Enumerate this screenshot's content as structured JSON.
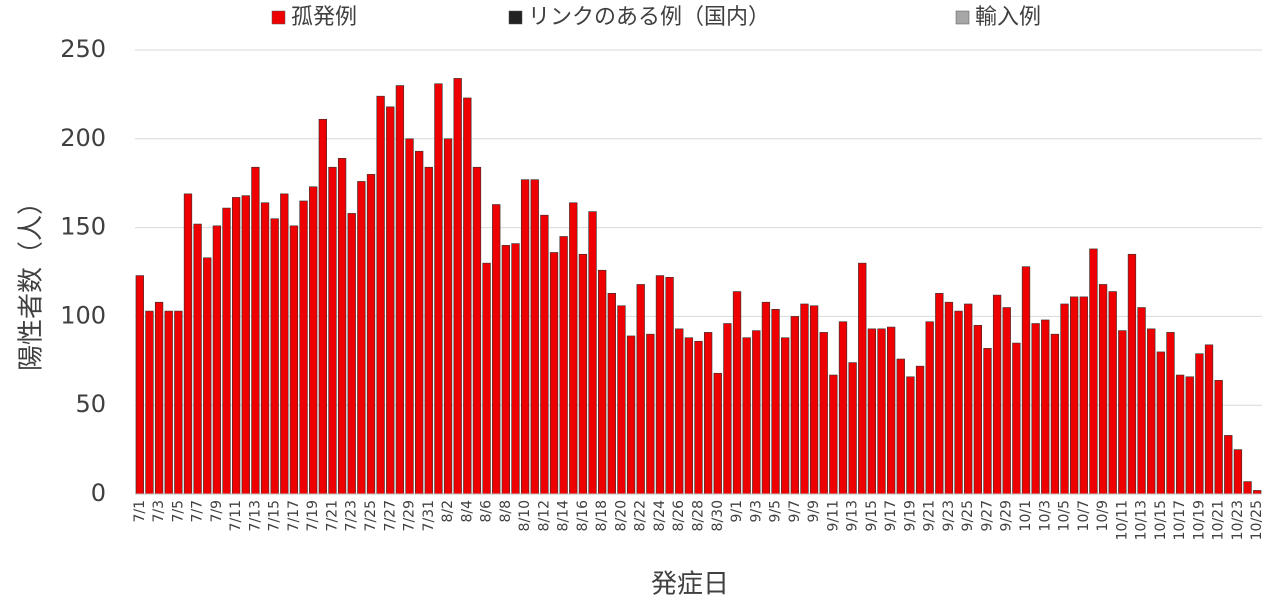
{
  "chart_data": {
    "type": "bar",
    "x_label": "発症日",
    "y_label": "陽性者数（人）",
    "categories": [
      "7/1",
      null,
      "7/3",
      null,
      "7/5",
      null,
      "7/7",
      null,
      "7/9",
      null,
      "7/11",
      null,
      "7/13",
      null,
      "7/15",
      null,
      "7/17",
      null,
      "7/19",
      null,
      "7/21",
      null,
      "7/23",
      null,
      "7/25",
      null,
      "7/27",
      null,
      "7/29",
      null,
      "7/31",
      null,
      "8/2",
      null,
      "8/4",
      null,
      "8/6",
      null,
      "8/8",
      null,
      "8/10",
      null,
      "8/12",
      null,
      "8/14",
      null,
      "8/16",
      null,
      "8/18",
      null,
      "8/20",
      null,
      "8/22",
      null,
      "8/24",
      null,
      "8/26",
      null,
      "8/28",
      null,
      "8/30",
      null,
      "9/1",
      null,
      "9/3",
      null,
      "9/5",
      null,
      "9/7",
      null,
      "9/9",
      null,
      "9/11",
      null,
      "9/13",
      null,
      "9/15",
      null,
      "9/17",
      null,
      "9/19",
      null,
      "9/21",
      null,
      "9/23",
      null,
      "9/25",
      null,
      "9/27",
      null,
      "9/29",
      null,
      "10/1",
      null,
      "10/3",
      null,
      "10/5",
      null,
      "10/7",
      null,
      "10/9",
      null,
      "10/11",
      null,
      "10/13",
      null,
      "10/15",
      null,
      "10/17",
      null,
      "10/19",
      null,
      "10/21",
      null,
      "10/23",
      null,
      "10/25"
    ],
    "series": [
      {
        "name": "孤発例",
        "color": "#ee0000",
        "values": [
          123,
          103,
          108,
          103,
          103,
          169,
          152,
          133,
          151,
          161,
          167,
          168,
          184,
          164,
          155,
          169,
          151,
          165,
          173,
          211,
          184,
          189,
          158,
          176,
          180,
          224,
          218,
          230,
          200,
          193,
          184,
          231,
          200,
          234,
          223,
          184,
          130,
          163,
          140,
          141,
          177,
          177,
          157,
          136,
          145,
          164,
          135,
          159,
          126,
          113,
          106,
          89,
          118,
          90,
          123,
          122,
          93,
          88,
          86,
          91,
          68,
          96,
          114,
          88,
          92,
          108,
          104,
          88,
          100,
          107,
          106,
          91,
          67,
          97,
          74,
          130,
          93,
          93,
          94,
          76,
          66,
          72,
          97,
          113,
          108,
          103,
          107,
          95,
          82,
          112,
          105,
          85,
          128,
          96,
          98,
          90,
          107,
          111,
          111,
          138,
          118,
          114,
          92,
          135,
          105,
          93,
          80,
          91,
          67,
          66,
          79,
          84,
          64,
          33,
          25,
          7,
          2
        ]
      },
      {
        "name": "リンクのある例（国内）",
        "color": "#222222",
        "values": [
          0,
          0,
          0,
          0,
          0,
          0,
          0,
          0,
          0,
          0,
          0,
          0,
          0,
          0,
          0,
          0,
          0,
          0,
          0,
          0,
          0,
          0,
          0,
          0,
          0,
          0,
          0,
          0,
          0,
          0,
          0,
          0,
          0,
          0,
          0,
          0,
          0,
          0,
          0,
          0,
          0,
          0,
          0,
          0,
          0,
          0,
          0,
          0,
          0,
          0,
          0,
          0,
          0,
          0,
          0,
          0,
          0,
          0,
          0,
          0,
          0,
          0,
          0,
          0,
          0,
          0,
          0,
          0,
          0,
          0,
          0,
          0,
          0,
          0,
          0,
          0,
          0,
          0,
          0,
          0,
          0,
          0,
          0,
          0,
          0,
          0,
          0,
          0,
          0,
          0,
          0,
          0,
          0,
          0,
          0,
          0,
          0,
          0,
          0,
          0,
          0,
          0,
          0,
          0,
          0,
          0,
          0,
          0,
          0,
          0,
          0,
          0,
          0,
          0,
          0,
          0,
          0
        ]
      },
      {
        "name": "輸入例",
        "color": "#a6a6a6",
        "values": [
          0,
          0,
          0,
          0,
          0,
          0,
          0,
          0,
          0,
          0,
          0,
          0,
          0,
          0,
          0,
          0,
          0,
          0,
          0,
          0,
          0,
          0,
          0,
          0,
          0,
          0,
          0,
          0,
          0,
          0,
          0,
          0,
          0,
          0,
          0,
          0,
          0,
          0,
          0,
          0,
          0,
          0,
          0,
          0,
          0,
          0,
          0,
          0,
          0,
          0,
          0,
          0,
          0,
          0,
          0,
          0,
          0,
          0,
          0,
          0,
          0,
          0,
          0,
          0,
          0,
          0,
          0,
          0,
          0,
          0,
          0,
          0,
          0,
          0,
          0,
          0,
          0,
          0,
          0,
          0,
          0,
          0,
          0,
          0,
          0,
          0,
          0,
          0,
          0,
          0,
          0,
          0,
          0,
          0,
          0,
          0,
          0,
          0,
          0,
          0,
          0,
          0,
          0,
          0,
          0,
          0,
          0,
          0,
          0,
          0,
          0,
          0,
          0,
          0,
          0,
          0,
          0
        ]
      }
    ],
    "ylim": [
      0,
      250
    ],
    "yticks": [
      0,
      50,
      100,
      150,
      200,
      250
    ],
    "grid": true,
    "stacked": true,
    "legend": "top"
  }
}
